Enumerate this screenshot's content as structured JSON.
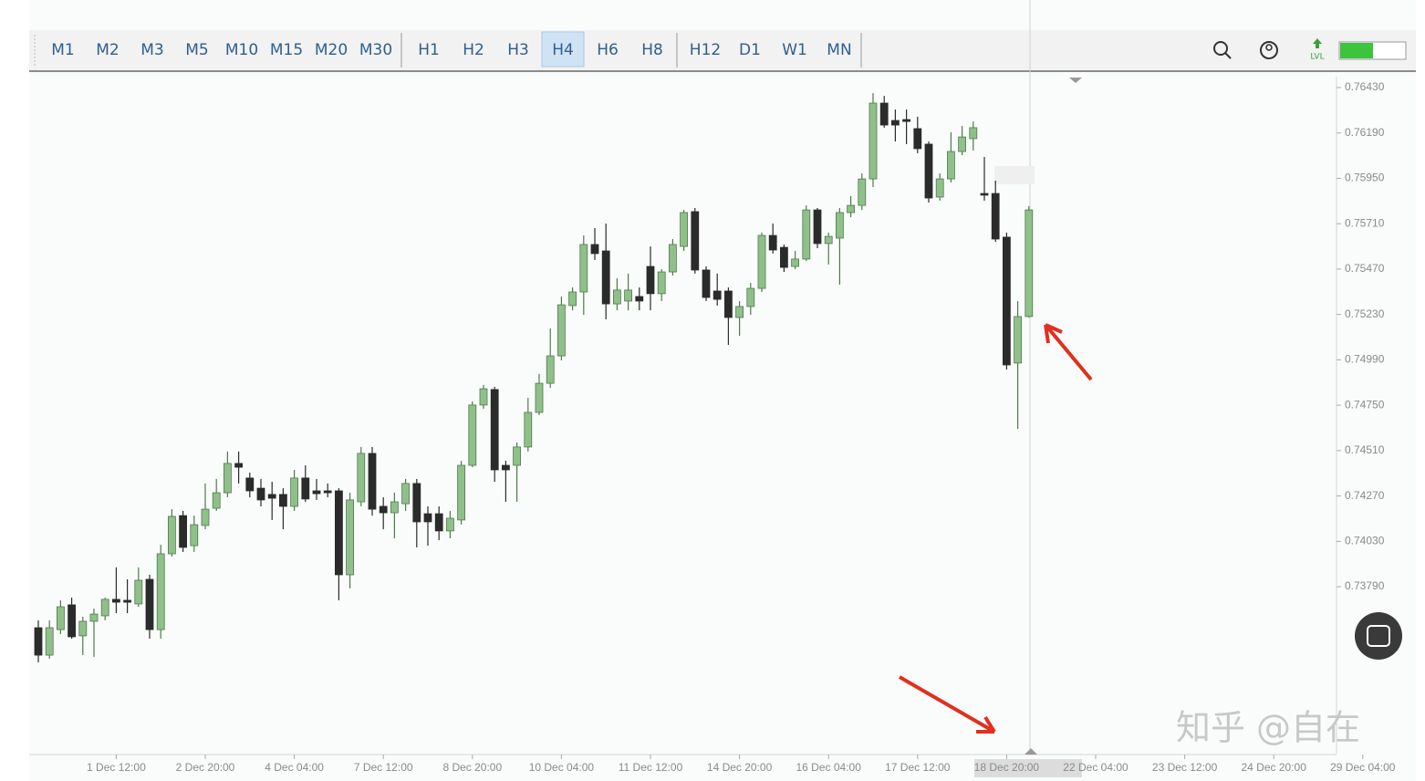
{
  "toolbar": {
    "timeframes": [
      "M1",
      "M2",
      "M3",
      "M5",
      "M10",
      "M15",
      "M20",
      "M30",
      "H1",
      "H2",
      "H3",
      "H4",
      "H6",
      "H8",
      "H12",
      "D1",
      "W1",
      "MN"
    ],
    "active": "H4",
    "level_icon": "LVL"
  },
  "watermark": "知乎 @自在",
  "chart_data": {
    "type": "candlestick",
    "up_color": "#8fc08a",
    "down_color": "#2b2b2b",
    "grid": false,
    "ylim": [
      0.72907,
      0.76488
    ],
    "yticks": [
      {
        "value": 0.7643,
        "label": "0.76430"
      },
      {
        "value": 0.7619,
        "label": "0.76190"
      },
      {
        "value": 0.7595,
        "label": "0.75950"
      },
      {
        "value": 0.7571,
        "label": "0.75710"
      },
      {
        "value": 0.7547,
        "label": "0.75470"
      },
      {
        "value": 0.7523,
        "label": "0.75230"
      },
      {
        "value": 0.7499,
        "label": "0.74990"
      },
      {
        "value": 0.7475,
        "label": "0.74750"
      },
      {
        "value": 0.7451,
        "label": "0.74510"
      },
      {
        "value": 0.7427,
        "label": "0.74270"
      },
      {
        "value": 0.7403,
        "label": "0.74030"
      },
      {
        "value": 0.7379,
        "label": "0.73790"
      }
    ],
    "xticks": [
      {
        "value": 7,
        "label": "1 Dec 12:00"
      },
      {
        "value": 15,
        "label": "2 Dec 20:00"
      },
      {
        "value": 23,
        "label": "4 Dec 04:00"
      },
      {
        "value": 31,
        "label": "7 Dec 12:00"
      },
      {
        "value": 39,
        "label": "8 Dec 20:00"
      },
      {
        "value": 47,
        "label": "10 Dec 04:00"
      },
      {
        "value": 55,
        "label": "11 Dec 12:00"
      },
      {
        "value": 63,
        "label": "14 Dec 20:00"
      },
      {
        "value": 71,
        "label": "16 Dec 04:00"
      },
      {
        "value": 79,
        "label": "17 Dec 12:00"
      },
      {
        "value": 87,
        "label": "18 Dec 20:00"
      },
      {
        "value": 95,
        "label": "22 Dec 04:00"
      },
      {
        "value": 103,
        "label": "23 Dec 12:00"
      },
      {
        "value": 111,
        "label": "24 Dec 20:00"
      },
      {
        "value": 119,
        "label": "29 Dec 04:00"
      }
    ],
    "ohlc": [
      [
        0.73573,
        0.73612,
        0.7339,
        0.73428
      ],
      [
        0.73428,
        0.73612,
        0.73409,
        0.73573
      ],
      [
        0.73563,
        0.73718,
        0.73539,
        0.73684
      ],
      [
        0.73694,
        0.73732,
        0.73515,
        0.73525
      ],
      [
        0.7353,
        0.73631,
        0.73428,
        0.73607
      ],
      [
        0.73607,
        0.73674,
        0.73419,
        0.73645
      ],
      [
        0.73636,
        0.73732,
        0.73612,
        0.73723
      ],
      [
        0.73723,
        0.73892,
        0.7365,
        0.73708
      ],
      [
        0.73718,
        0.73829,
        0.7365,
        0.73708
      ],
      [
        0.73699,
        0.73892,
        0.73684,
        0.73824
      ],
      [
        0.73829,
        0.73853,
        0.73515,
        0.73563
      ],
      [
        0.73563,
        0.74012,
        0.73515,
        0.73964
      ],
      [
        0.73964,
        0.742,
        0.73949,
        0.74162
      ],
      [
        0.74166,
        0.74191,
        0.73974,
        0.73998
      ],
      [
        0.74007,
        0.74166,
        0.73974,
        0.74118
      ],
      [
        0.74114,
        0.74336,
        0.74094,
        0.742
      ],
      [
        0.74205,
        0.7436,
        0.74191,
        0.74287
      ],
      [
        0.74287,
        0.74505,
        0.74263,
        0.74442
      ],
      [
        0.74442,
        0.74505,
        0.74336,
        0.74422
      ],
      [
        0.74365,
        0.74393,
        0.74263,
        0.74297
      ],
      [
        0.74311,
        0.7436,
        0.74215,
        0.74249
      ],
      [
        0.74278,
        0.74345,
        0.74143,
        0.74258
      ],
      [
        0.74278,
        0.74311,
        0.74094,
        0.74215
      ],
      [
        0.74215,
        0.74408,
        0.74191,
        0.74365
      ],
      [
        0.74365,
        0.74432,
        0.74239,
        0.74254
      ],
      [
        0.74297,
        0.7436,
        0.74249,
        0.74282
      ],
      [
        0.74297,
        0.74336,
        0.74263,
        0.74287
      ],
      [
        0.74297,
        0.74311,
        0.73718,
        0.73853
      ],
      [
        0.73853,
        0.74287,
        0.73781,
        0.74249
      ],
      [
        0.74239,
        0.74529,
        0.74215,
        0.74495
      ],
      [
        0.74495,
        0.74529,
        0.74166,
        0.742
      ],
      [
        0.74215,
        0.74263,
        0.74094,
        0.74181
      ],
      [
        0.74181,
        0.74287,
        0.74046,
        0.74239
      ],
      [
        0.74229,
        0.7436,
        0.74191,
        0.74336
      ],
      [
        0.74336,
        0.7436,
        0.73998,
        0.74133
      ],
      [
        0.74176,
        0.74215,
        0.74007,
        0.74133
      ],
      [
        0.74176,
        0.74215,
        0.74036,
        0.74085
      ],
      [
        0.74085,
        0.74191,
        0.74046,
        0.74152
      ],
      [
        0.74143,
        0.74456,
        0.74118,
        0.74432
      ],
      [
        0.74432,
        0.7477,
        0.74422,
        0.74751
      ],
      [
        0.74751,
        0.74857,
        0.74731,
        0.74837
      ],
      [
        0.74833,
        0.74847,
        0.74345,
        0.74408
      ],
      [
        0.74432,
        0.74456,
        0.74239,
        0.74408
      ],
      [
        0.74432,
        0.74553,
        0.74239,
        0.74529
      ],
      [
        0.74529,
        0.74789,
        0.74505,
        0.74712
      ],
      [
        0.74712,
        0.74915,
        0.74698,
        0.74866
      ],
      [
        0.74866,
        0.75156,
        0.74842,
        0.75011
      ],
      [
        0.75011,
        0.75325,
        0.74987,
        0.75281
      ],
      [
        0.75277,
        0.75373,
        0.75252,
        0.75349
      ],
      [
        0.75349,
        0.75648,
        0.75228,
        0.756
      ],
      [
        0.756,
        0.75687,
        0.75518,
        0.75552
      ],
      [
        0.75566,
        0.75711,
        0.75204,
        0.75286
      ],
      [
        0.75286,
        0.75421,
        0.75252,
        0.75359
      ],
      [
        0.75301,
        0.75446,
        0.75252,
        0.75359
      ],
      [
        0.75325,
        0.75373,
        0.75252,
        0.75301
      ],
      [
        0.75484,
        0.7559,
        0.75252,
        0.7534
      ],
      [
        0.7534,
        0.7547,
        0.75301,
        0.75455
      ],
      [
        0.75455,
        0.75629,
        0.75436,
        0.756
      ],
      [
        0.7559,
        0.75783,
        0.75566,
        0.75769
      ],
      [
        0.75774,
        0.75793,
        0.75446,
        0.75465
      ],
      [
        0.75465,
        0.75484,
        0.75301,
        0.7532
      ],
      [
        0.75354,
        0.75446,
        0.75277,
        0.7531
      ],
      [
        0.75354,
        0.75373,
        0.75069,
        0.75214
      ],
      [
        0.75214,
        0.75301,
        0.75117,
        0.75272
      ],
      [
        0.75272,
        0.75397,
        0.75228,
        0.75368
      ],
      [
        0.75368,
        0.75663,
        0.75349,
        0.75648
      ],
      [
        0.75648,
        0.75711,
        0.75552,
        0.75571
      ],
      [
        0.75585,
        0.756,
        0.75455,
        0.75479
      ],
      [
        0.75484,
        0.75566,
        0.7547,
        0.75523
      ],
      [
        0.75523,
        0.75807,
        0.75513,
        0.75783
      ],
      [
        0.75783,
        0.75793,
        0.75581,
        0.75605
      ],
      [
        0.75605,
        0.75663,
        0.75494,
        0.75643
      ],
      [
        0.75634,
        0.75793,
        0.75388,
        0.75769
      ],
      [
        0.75769,
        0.75856,
        0.75745,
        0.75807
      ],
      [
        0.75807,
        0.75976,
        0.75783,
        0.75947
      ],
      [
        0.75947,
        0.76401,
        0.75904,
        0.76348
      ],
      [
        0.76348,
        0.76386,
        0.76218,
        0.76232
      ],
      [
        0.76256,
        0.76314,
        0.76145,
        0.76232
      ],
      [
        0.76261,
        0.76314,
        0.76131,
        0.76251
      ],
      [
        0.76213,
        0.76276,
        0.76083,
        0.76107
      ],
      [
        0.76131,
        0.76145,
        0.75822,
        0.75846
      ],
      [
        0.75851,
        0.75976,
        0.75832,
        0.75947
      ],
      [
        0.75947,
        0.76194,
        0.75928,
        0.76092
      ],
      [
        0.76092,
        0.76227,
        0.76073,
        0.76169
      ],
      [
        0.7616,
        0.76251,
        0.76097,
        0.76218
      ],
      [
        0.7587,
        0.76063,
        0.75832,
        0.75861
      ],
      [
        0.7587,
        0.75938,
        0.75614,
        0.75629
      ],
      [
        0.75639,
        0.75663,
        0.74939,
        0.74963
      ],
      [
        0.74973,
        0.75301,
        0.74625,
        0.75219
      ],
      [
        0.75219,
        0.75803,
        0.75214,
        0.75783
      ]
    ]
  }
}
